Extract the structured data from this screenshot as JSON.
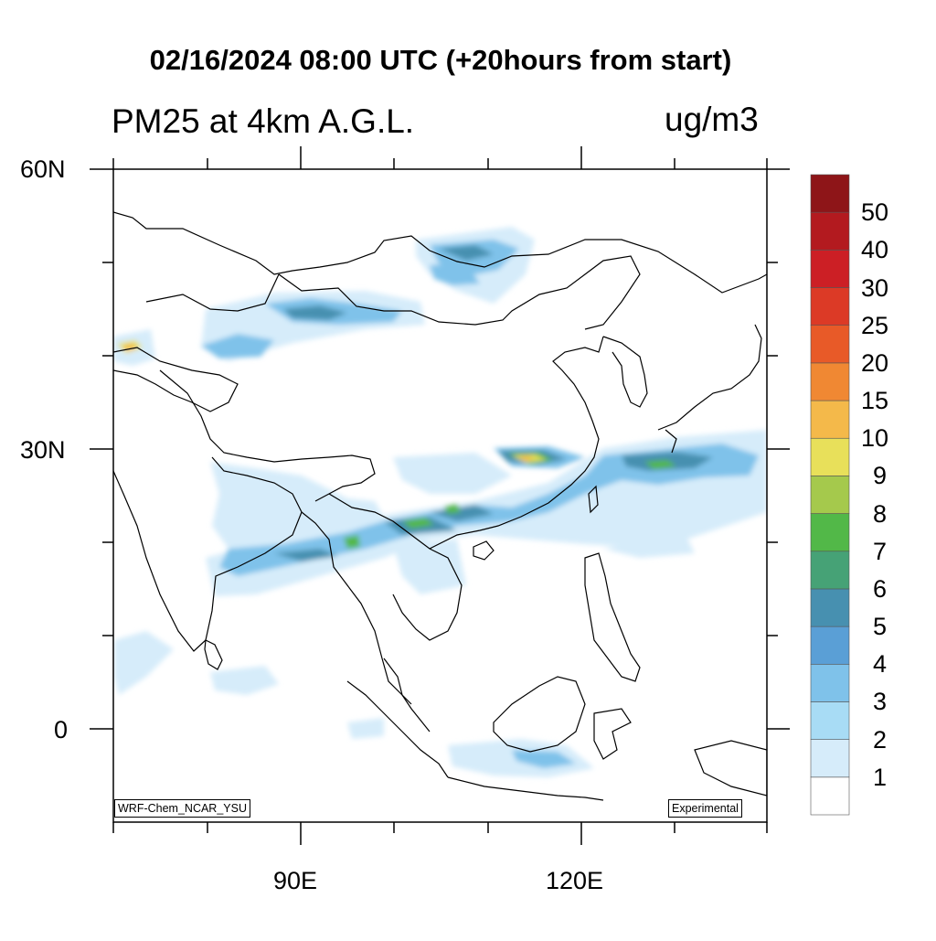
{
  "title": "02/16/2024 08:00 UTC (+20hours from start)",
  "subtitle": "PM25 at 4km A.G.L.",
  "units": "ug/m3",
  "lat_labels": [
    "60N",
    "30N",
    "0"
  ],
  "lon_labels": [
    "90E",
    "120E"
  ],
  "map_extent": {
    "lon_min": 70,
    "lon_max": 140,
    "lat_min": -10,
    "lat_max": 60
  },
  "model_label": "WRF-Chem_NCAR_YSU",
  "status_label": "Experimental",
  "colorbar": {
    "levels": [
      "1",
      "2",
      "3",
      "4",
      "5",
      "6",
      "7",
      "8",
      "9",
      "10",
      "15",
      "20",
      "25",
      "30",
      "40",
      "50"
    ],
    "colors": [
      "#ffffff",
      "#d6ecfa",
      "#a8dcf5",
      "#7fc2ea",
      "#5a9fd6",
      "#4790b0",
      "#46a276",
      "#52b848",
      "#a5c94c",
      "#e8e05a",
      "#f4b94a",
      "#f08833",
      "#e85a28",
      "#dc3a26",
      "#cc1f25",
      "#b31a1f",
      "#8e1518"
    ]
  }
}
